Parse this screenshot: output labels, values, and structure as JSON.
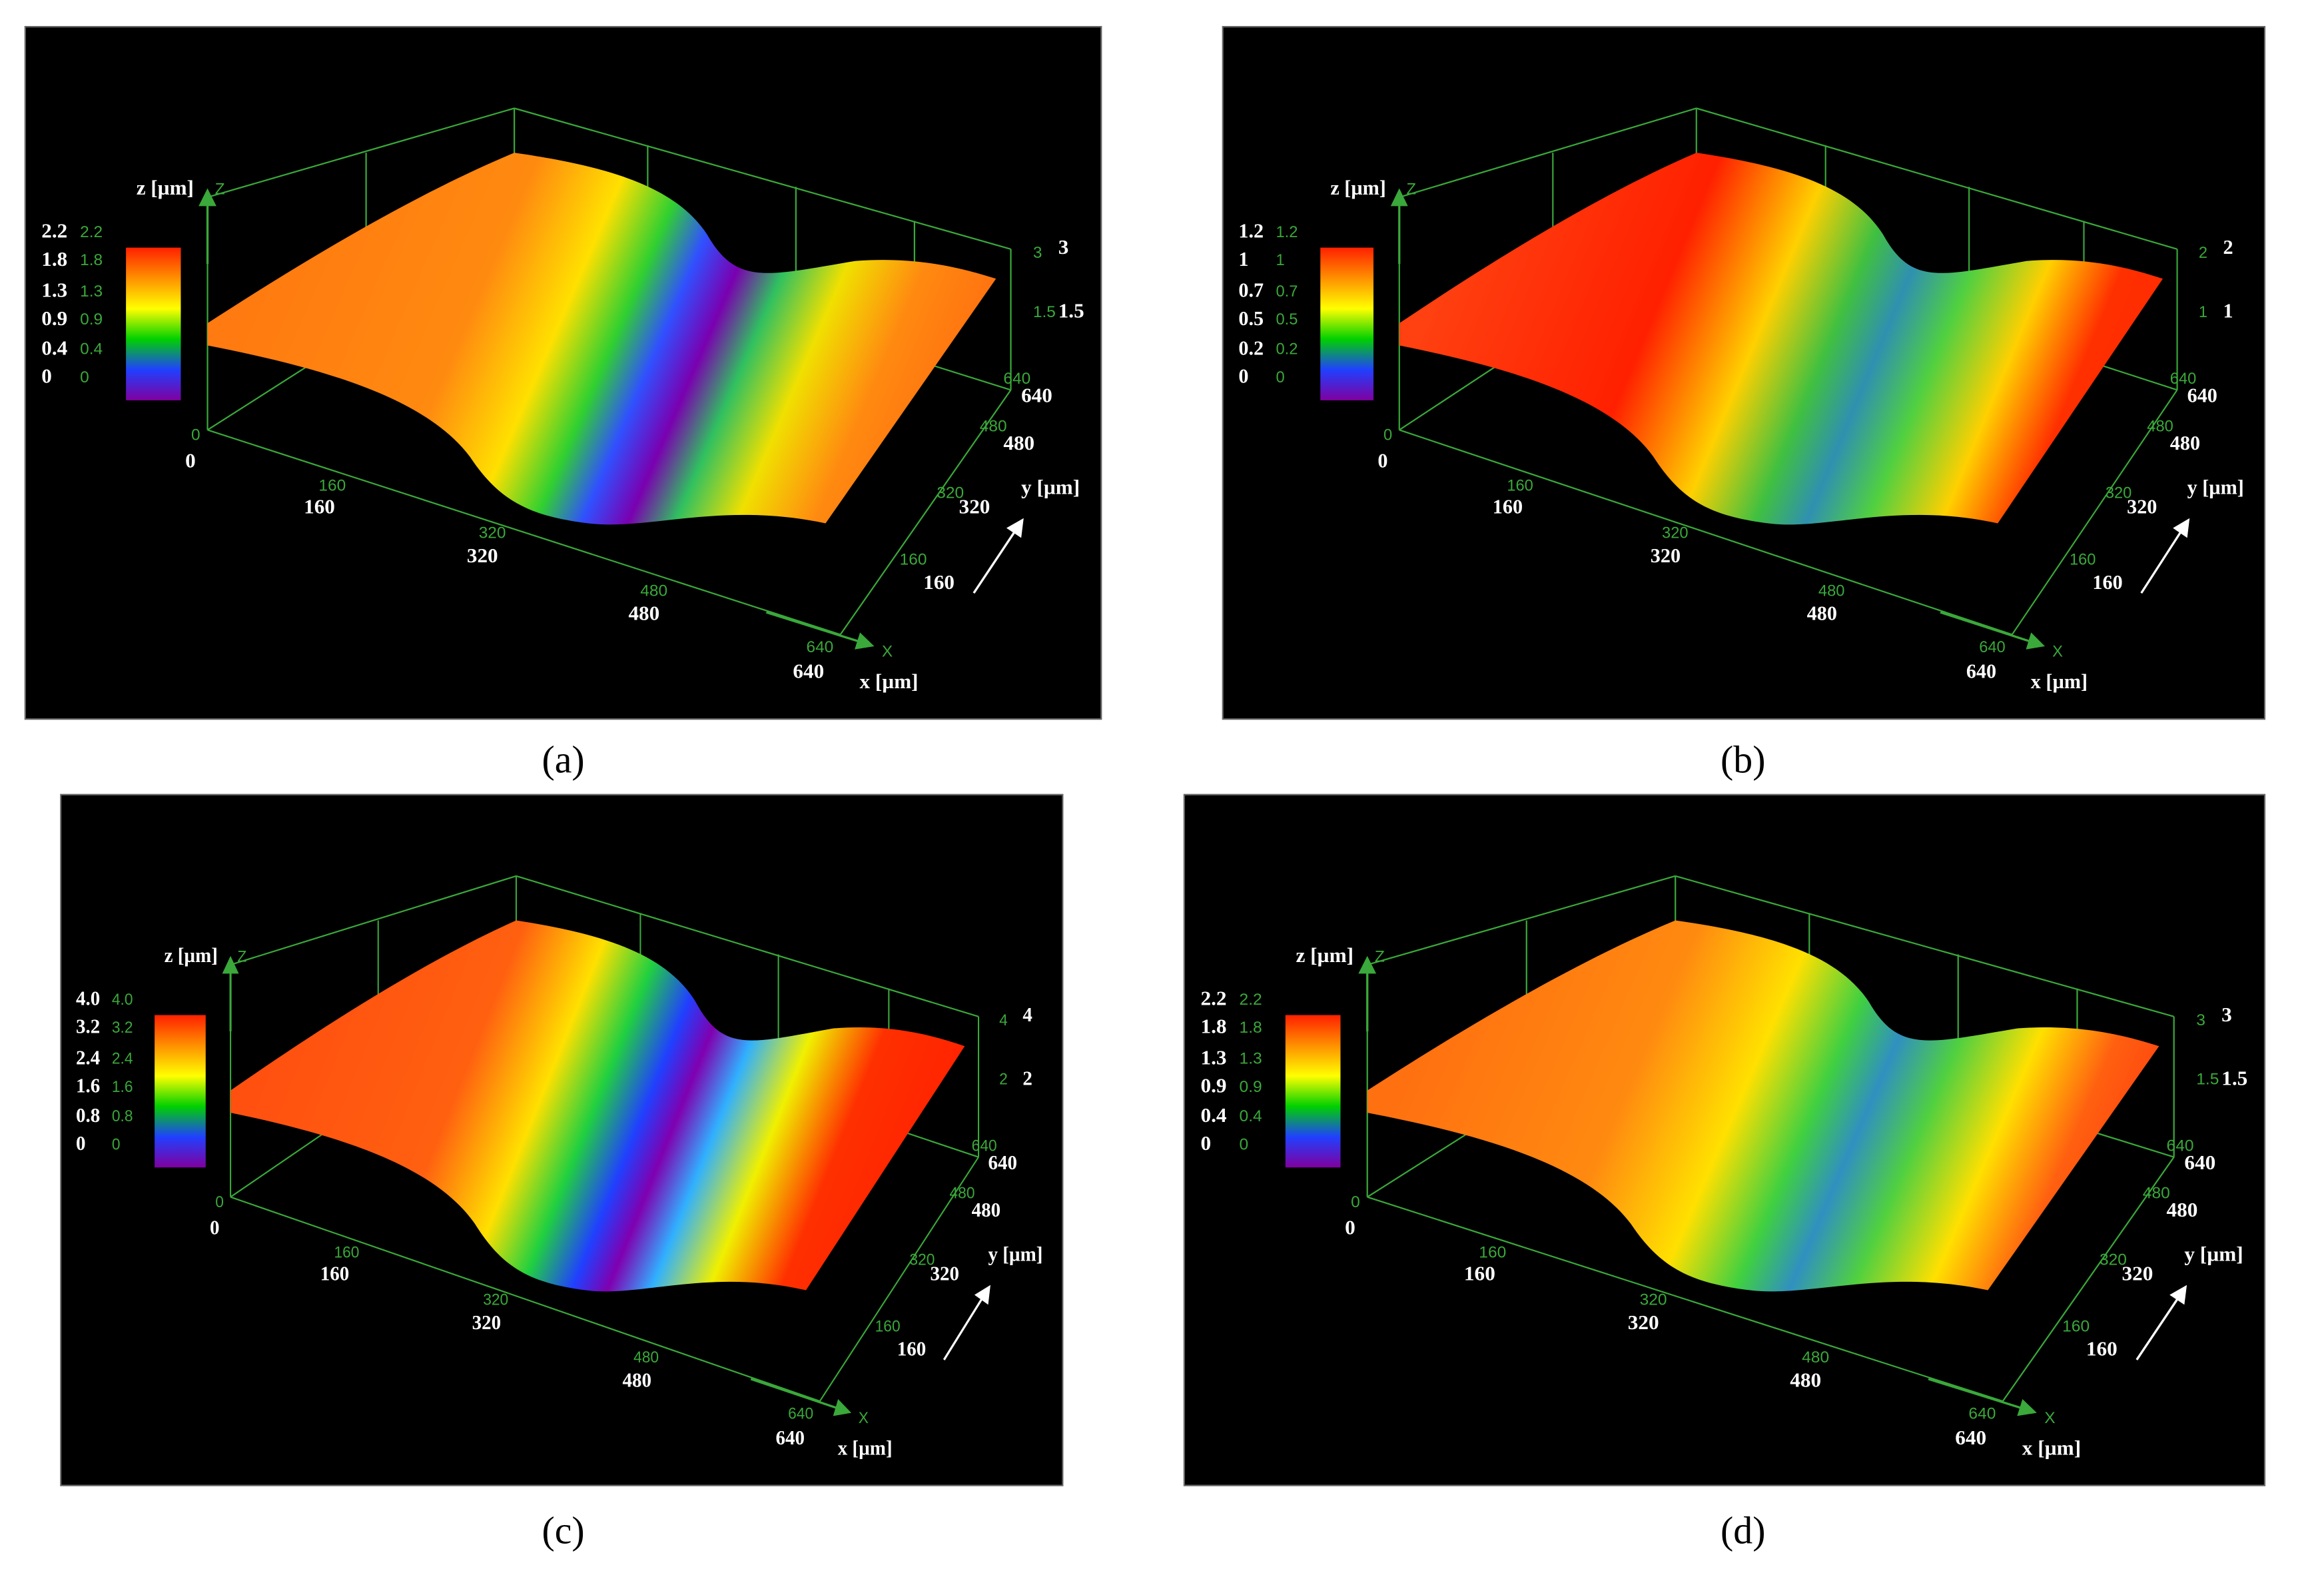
{
  "panels": [
    {
      "caption": "(a)",
      "colorbar": {
        "title": "z [µm]",
        "ticks": [
          "2.2",
          "1.8",
          "1.3",
          "0.9",
          "0.4",
          "0"
        ]
      },
      "z_axis": {
        "letter": "Z",
        "ticks": [
          "3",
          "1.5"
        ]
      },
      "x_axis": {
        "letter": "X",
        "title": "x [µm]",
        "ticks": [
          "0",
          "160",
          "320",
          "480",
          "640"
        ]
      },
      "y_axis": {
        "title": "y [µm]",
        "ticks": [
          "160",
          "320",
          "480",
          "640"
        ]
      }
    },
    {
      "caption": "(b)",
      "colorbar": {
        "title": "z [µm]",
        "ticks": [
          "1.2",
          "1",
          "0.7",
          "0.5",
          "0.2",
          "0"
        ]
      },
      "z_axis": {
        "letter": "Z",
        "ticks": [
          "2",
          "1"
        ]
      },
      "x_axis": {
        "letter": "X",
        "title": "x [µm]",
        "ticks": [
          "0",
          "160",
          "320",
          "480",
          "640"
        ]
      },
      "y_axis": {
        "title": "y [µm]",
        "ticks": [
          "160",
          "320",
          "480",
          "640"
        ]
      }
    },
    {
      "caption": "(c)",
      "colorbar": {
        "title": "z [µm]",
        "ticks": [
          "4.0",
          "3.2",
          "2.4",
          "1.6",
          "0.8",
          "0"
        ]
      },
      "z_axis": {
        "letter": "Z",
        "ticks": [
          "4",
          "2"
        ]
      },
      "x_axis": {
        "letter": "X",
        "title": "x [µm]",
        "ticks": [
          "0",
          "160",
          "320",
          "480",
          "640"
        ]
      },
      "y_axis": {
        "title": "y [µm]",
        "ticks": [
          "160",
          "320",
          "480",
          "640"
        ]
      }
    },
    {
      "caption": "(d)",
      "colorbar": {
        "title": "z [µm]",
        "ticks": [
          "2.2",
          "1.8",
          "1.3",
          "0.9",
          "0.4",
          "0"
        ]
      },
      "z_axis": {
        "letter": "Z",
        "ticks": [
          "3",
          "1.5"
        ]
      },
      "x_axis": {
        "letter": "X",
        "title": "x [µm]",
        "ticks": [
          "0",
          "160",
          "320",
          "480",
          "640"
        ]
      },
      "y_axis": {
        "title": "y [µm]",
        "ticks": [
          "160",
          "320",
          "480",
          "640"
        ]
      }
    }
  ]
}
